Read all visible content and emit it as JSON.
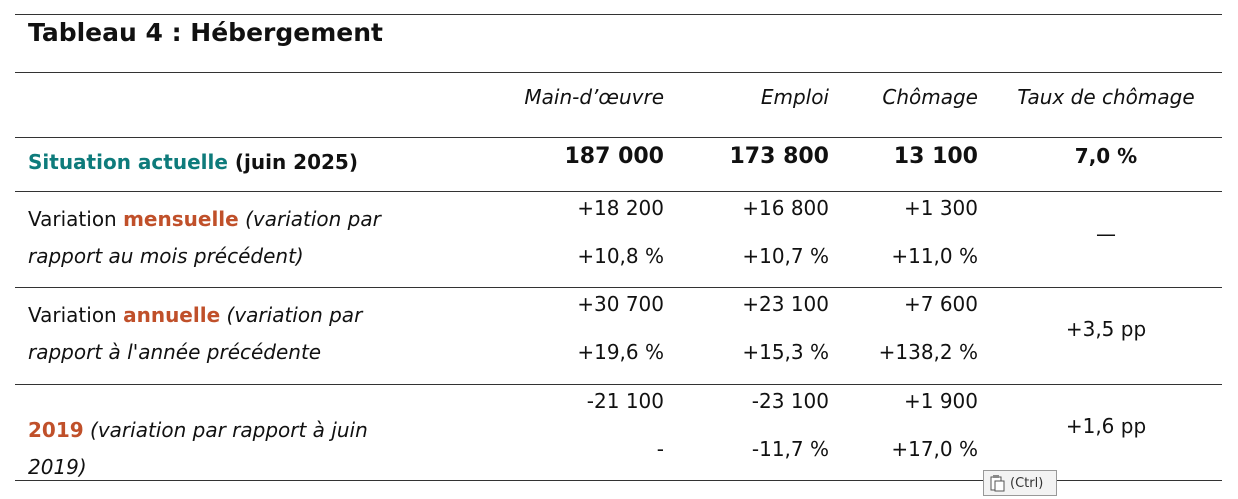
{
  "title": "Tableau 4 : Hébergement",
  "table": {
    "columns": [
      "Main-d’œuvre",
      "Emploi",
      "Chômage",
      "Taux de chômage"
    ],
    "rows": [
      {
        "label": [
          "Situation actuelle",
          " (juin 2025)"
        ],
        "line1": [
          "187 000",
          "173 800",
          "13 100"
        ],
        "rate": "7,0 %"
      },
      {
        "label": [
          "Variation ",
          "mensuelle",
          " (variation par rapport au mois précédent)"
        ],
        "line1": [
          "+18 200",
          "+16 800",
          "+1 300"
        ],
        "line2": [
          "+10,8 %",
          "+10,7 %",
          "+11,0 %"
        ],
        "rate": "—"
      },
      {
        "label": [
          "Variation ",
          "annuelle",
          " (variation par rapport à l'année précédente"
        ],
        "line1": [
          "+30 700",
          "+23 100",
          "+7 600"
        ],
        "line2": [
          "+19,6 %",
          "+15,3 %",
          "+138,2 %"
        ],
        "rate": "+3,5 pp"
      },
      {
        "label": [
          "2019",
          " (variation par rapport à juin 2019)"
        ],
        "line1": [
          "-21 100",
          "-23 100",
          "+1 900"
        ],
        "line2": [
          "-",
          "-11,7 %",
          "+17,0 %"
        ],
        "rate": "+1,6 pp"
      }
    ]
  },
  "paste_button": "(Ctrl)"
}
